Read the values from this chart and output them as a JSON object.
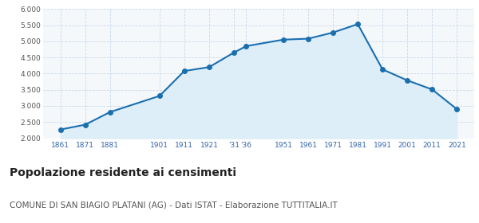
{
  "years": [
    1861,
    1871,
    1881,
    1901,
    1911,
    1921,
    1931,
    1936,
    1951,
    1961,
    1971,
    1981,
    1991,
    2001,
    2011,
    2021
  ],
  "population": [
    2270,
    2420,
    2810,
    3310,
    4080,
    4200,
    4650,
    4850,
    5050,
    5080,
    5270,
    5530,
    4130,
    3790,
    3510,
    2900
  ],
  "line_color": "#1a6faf",
  "fill_color": "#ddeef8",
  "marker_color": "#1a6faf",
  "background_color": "#f5f8fb",
  "grid_color": "#c8d8e8",
  "ylim": [
    2000,
    6000
  ],
  "yticks": [
    2000,
    2500,
    3000,
    3500,
    4000,
    4500,
    5000,
    5500,
    6000
  ],
  "title": "Popolazione residente ai censimenti",
  "subtitle": "COMUNE DI SAN BIAGIO PLATANI (AG) - Dati ISTAT - Elaborazione TUTTITALIA.IT",
  "title_fontsize": 10,
  "subtitle_fontsize": 7.5
}
